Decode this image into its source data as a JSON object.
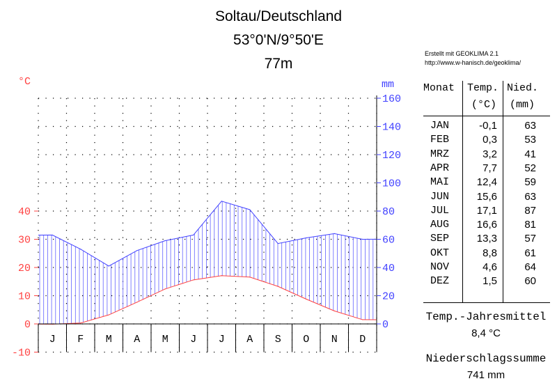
{
  "header": {
    "station": "Soltau/Deutschland",
    "coordinates": "53°0'N/9°50'E",
    "elevation": "77m",
    "credit_line1": "Erstellt mit GEOKLIMA 2.1",
    "credit_line2": "http://www.w-hanisch.de/geoklima/"
  },
  "chart_data": {
    "type": "line",
    "title": "Soltau/Deutschland",
    "categories": [
      "J",
      "F",
      "M",
      "A",
      "M",
      "J",
      "J",
      "A",
      "S",
      "O",
      "N",
      "D"
    ],
    "series": [
      {
        "name": "Temp.",
        "unit": "°C",
        "axis": "left",
        "color": "#ff4040",
        "values": [
          -0.1,
          0.3,
          3.2,
          7.7,
          12.4,
          15.6,
          17.1,
          16.6,
          13.3,
          8.8,
          4.6,
          1.5
        ]
      },
      {
        "name": "Nied.",
        "unit": "mm",
        "axis": "right",
        "color": "#4040ff",
        "values": [
          63,
          53,
          41,
          52,
          59,
          63,
          87,
          81,
          57,
          61,
          64,
          60
        ]
      }
    ],
    "y_left": {
      "label": "°C",
      "ticks": [
        -10,
        0,
        10,
        20,
        30,
        40
      ],
      "range": [
        -10,
        80
      ]
    },
    "y_right": {
      "label": "mm",
      "ticks": [
        0,
        20,
        40,
        60,
        80,
        100,
        120,
        140,
        160
      ],
      "range": [
        0,
        160
      ]
    },
    "grid": "dotted",
    "fill": "vertical hatching between curves where precipitation exceeds temperature"
  },
  "table": {
    "headers": {
      "month": "Monat",
      "temp_line1": "Temp.",
      "temp_line2": "(°C)",
      "prec_line1": "Nied.",
      "prec_line2": "(mm)"
    },
    "rows": [
      {
        "month": "JAN",
        "temp": "-0,1",
        "prec": "63"
      },
      {
        "month": "FEB",
        "temp": "0,3",
        "prec": "53"
      },
      {
        "month": "MRZ",
        "temp": "3,2",
        "prec": "41"
      },
      {
        "month": "APR",
        "temp": "7,7",
        "prec": "52"
      },
      {
        "month": "MAI",
        "temp": "12,4",
        "prec": "59"
      },
      {
        "month": "JUN",
        "temp": "15,6",
        "prec": "63"
      },
      {
        "month": "JUL",
        "temp": "17,1",
        "prec": "87"
      },
      {
        "month": "AUG",
        "temp": "16,6",
        "prec": "81"
      },
      {
        "month": "SEP",
        "temp": "13,3",
        "prec": "57"
      },
      {
        "month": "OKT",
        "temp": "8,8",
        "prec": "61"
      },
      {
        "month": "NOV",
        "temp": "4,6",
        "prec": "64"
      },
      {
        "month": "DEZ",
        "temp": "1,5",
        "prec": "60"
      }
    ]
  },
  "summary": {
    "temp_label": "Temp.-Jahresmittel",
    "temp_value": "8,4 °C",
    "prec_label": "Niederschlagssumme",
    "prec_value": "741 mm"
  }
}
